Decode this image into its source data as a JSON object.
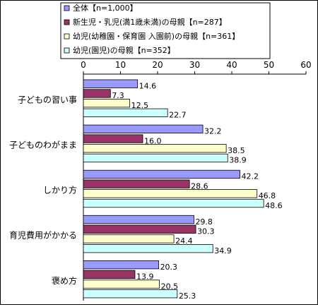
{
  "chart_data": {
    "type": "bar",
    "orientation": "horizontal",
    "categories": [
      "子どもの習い事",
      "子どものわがまま",
      "しかり方",
      "育児費用がかかる",
      "褒め方"
    ],
    "series": [
      {
        "name": "全体【n=1,000】",
        "color": "#9999ff",
        "values": [
          14.6,
          32.2,
          42.2,
          29.8,
          20.3
        ]
      },
      {
        "name": "新生児・乳児(満1歳未満)の母親【n=287】",
        "color": "#993366",
        "values": [
          7.3,
          16.0,
          28.6,
          30.3,
          13.9
        ]
      },
      {
        "name": "幼児(幼稚園・保育園 入園前)の母親【n=361】",
        "color": "#ffffcc",
        "values": [
          12.5,
          38.5,
          46.8,
          24.4,
          20.5
        ]
      },
      {
        "name": "幼児(園児)の母親【n=352】",
        "color": "#ccffff",
        "values": [
          22.7,
          38.9,
          48.6,
          34.9,
          25.3
        ]
      }
    ],
    "value_labels": [
      [
        "14.6",
        "32.2",
        "42.2",
        "29.8",
        "20.3"
      ],
      [
        "7.3",
        "16.0",
        "28.6",
        "30.3",
        "13.9"
      ],
      [
        "12.5",
        "38.5",
        "46.8",
        "24.4",
        "20.5"
      ],
      [
        "22.7",
        "38.9",
        "48.6",
        "34.9",
        "25.3"
      ]
    ],
    "axis_ticks": [
      "0",
      "10",
      "20",
      "30",
      "40",
      "50",
      "60"
    ],
    "xlim": [
      0,
      60
    ],
    "grid": false,
    "legend_position": "top"
  }
}
